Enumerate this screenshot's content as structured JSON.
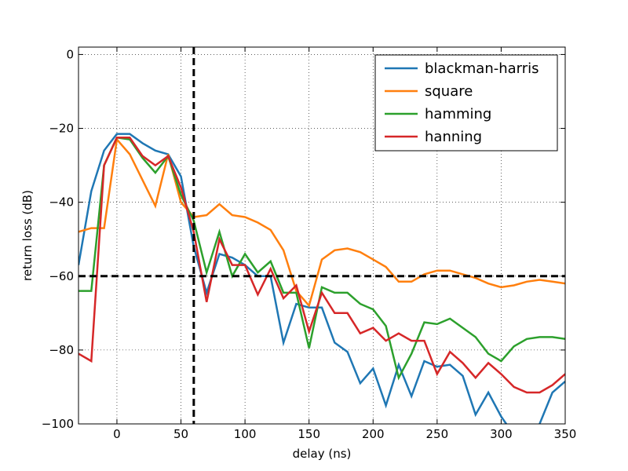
{
  "chart_data": {
    "type": "line",
    "xlabel": "delay (ns)",
    "ylabel": "return loss (dB)",
    "xlim": [
      -30,
      350
    ],
    "ylim": [
      -100,
      2
    ],
    "xticks": [
      0,
      50,
      100,
      150,
      200,
      250,
      300,
      350
    ],
    "yticks": [
      -100,
      -80,
      -60,
      -40,
      -20,
      0
    ],
    "ytick_labels": [
      "−100",
      "−80",
      "−60",
      "−40",
      "−20",
      "0"
    ],
    "grid": true,
    "legend_position": "top-right",
    "x": [
      -30,
      -20,
      -10,
      0,
      10,
      20,
      30,
      40,
      50,
      60,
      70,
      80,
      90,
      100,
      110,
      120,
      130,
      140,
      150,
      160,
      170,
      180,
      190,
      200,
      210,
      220,
      230,
      240,
      250,
      260,
      270,
      280,
      290,
      300,
      310,
      320,
      330,
      340,
      350
    ],
    "series": [
      {
        "name": "blackman-harris",
        "color": "#1f77b4",
        "values": [
          -57,
          -37,
          -26,
          -21.5,
          -21.5,
          -24,
          -26,
          -27,
          -33,
          -52,
          -64.5,
          -54,
          -55,
          -57,
          -60,
          -60,
          -78,
          -67.5,
          -68.5,
          -68.5,
          -78,
          -80.5,
          -89,
          -85,
          -95,
          -84,
          -92.5,
          -83,
          -84.5,
          -84,
          -87,
          -97.5,
          -91.5,
          -98,
          -103,
          -105,
          -100,
          -91.5,
          -88.5
        ]
      },
      {
        "name": "square",
        "color": "#ff7f0e",
        "values": [
          -48,
          -47,
          -47,
          -23,
          -27,
          -34,
          -41,
          -27,
          -40,
          -44,
          -43.5,
          -40.5,
          -43.5,
          -44,
          -45.5,
          -47.5,
          -53,
          -64,
          -68,
          -55.5,
          -53,
          -52.5,
          -53.5,
          -55.5,
          -57.5,
          -61.5,
          -61.5,
          -59.5,
          -58.5,
          -58.5,
          -59.5,
          -60.5,
          -62,
          -63,
          -62.5,
          -61.5,
          -61,
          -61.5,
          -62
        ]
      },
      {
        "name": "hamming",
        "color": "#2ca02c",
        "values": [
          -64,
          -64,
          -30,
          -22.5,
          -23,
          -28,
          -32,
          -27.5,
          -38,
          -45,
          -59,
          -48,
          -60,
          -54,
          -59,
          -56,
          -64.5,
          -64.5,
          -79.5,
          -63,
          -64.5,
          -64.5,
          -67.5,
          -69,
          -73.5,
          -87.5,
          -81,
          -72.5,
          -73,
          -71.5,
          -74,
          -76.5,
          -81,
          -83,
          -79,
          -77,
          -76.5,
          -76.5,
          -77
        ]
      },
      {
        "name": "hanning",
        "color": "#d62728",
        "values": [
          -81,
          -83,
          -30,
          -22.5,
          -22.5,
          -27.5,
          -30,
          -27.5,
          -36,
          -48,
          -67,
          -50,
          -57,
          -57,
          -65,
          -58,
          -66,
          -62.5,
          -75,
          -64.5,
          -70,
          -70,
          -75.5,
          -74,
          -77.5,
          -75.5,
          -77.5,
          -77.5,
          -86.5,
          -80.5,
          -83.5,
          -87.5,
          -83.5,
          -86.5,
          -90,
          -91.5,
          -91.5,
          -89.5,
          -86.5
        ]
      }
    ],
    "reference_lines": [
      {
        "orientation": "vertical",
        "x": 60,
        "style": "dashed",
        "color": "#000000"
      },
      {
        "orientation": "horizontal",
        "y": -60,
        "style": "dashed",
        "color": "#000000"
      }
    ]
  }
}
